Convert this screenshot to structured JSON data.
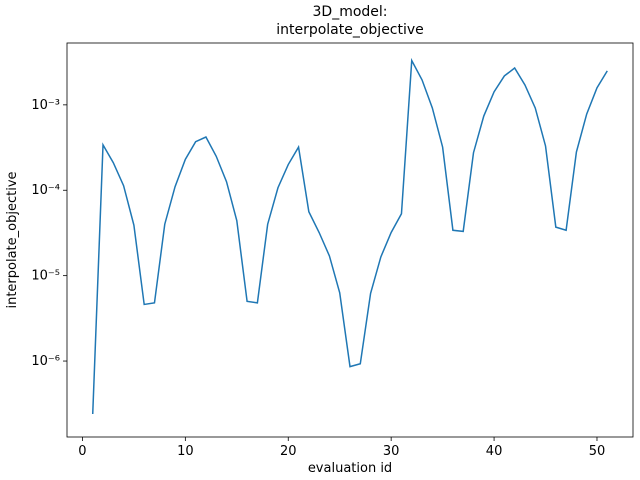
{
  "chart_data": {
    "type": "line",
    "title": [
      "3D_model:",
      "interpolate_objective"
    ],
    "xlabel": "evaluation id",
    "ylabel": "interpolate_objective",
    "x": [
      1,
      2,
      3,
      4,
      5,
      6,
      7,
      8,
      9,
      10,
      11,
      12,
      13,
      14,
      15,
      16,
      17,
      18,
      19,
      20,
      21,
      22,
      23,
      24,
      25,
      26,
      27,
      28,
      29,
      30,
      31,
      32,
      33,
      34,
      35,
      36,
      37,
      38,
      39,
      40,
      41,
      42,
      43,
      44,
      45,
      46,
      47,
      48,
      49,
      50,
      51
    ],
    "series": [
      {
        "color": "#1f77b4",
        "values": [
          2.4e-07,
          0.00034,
          0.00021,
          0.000113,
          3.9e-05,
          4.6e-06,
          4.8e-06,
          4e-05,
          0.00011,
          0.00023,
          0.00037,
          0.00042,
          0.00025,
          0.000126,
          4.4e-05,
          5e-06,
          4.8e-06,
          4e-05,
          0.000107,
          0.0002,
          0.00032,
          5.6e-05,
          3.2e-05,
          1.7e-05,
          6.3e-06,
          8.6e-07,
          9.3e-07,
          6.2e-06,
          1.66e-05,
          3.2e-05,
          5.3e-05,
          0.0033,
          0.00196,
          0.00092,
          0.00032,
          3.4e-05,
          3.3e-05,
          0.000275,
          0.00074,
          0.00142,
          0.00218,
          0.0027,
          0.00171,
          0.00092,
          0.00033,
          3.7e-05,
          3.4e-05,
          0.00028,
          0.00078,
          0.00158,
          0.0025
        ]
      }
    ],
    "xlim": [
      -1.5,
      53.5
    ],
    "xticks": [
      0,
      10,
      20,
      30,
      40,
      50
    ],
    "ylim": [
      1.29e-07,
      0.0053
    ],
    "ylog": true,
    "yticks": [
      {
        "value": 1e-06,
        "label": "10⁻⁶"
      },
      {
        "value": 1e-05,
        "label": "10⁻⁵"
      },
      {
        "value": 0.0001,
        "label": "10⁻⁴"
      },
      {
        "value": 0.001,
        "label": "10⁻³"
      }
    ]
  }
}
